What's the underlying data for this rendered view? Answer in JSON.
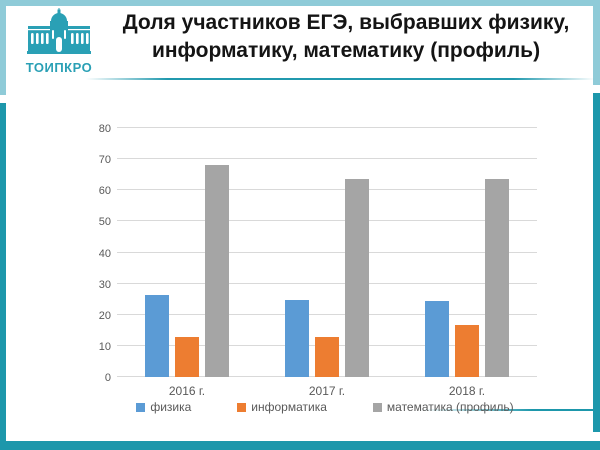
{
  "header": {
    "logo_text": "ТОИПКРО",
    "title_lines": [
      "Доля участников ЕГЭ, выбравших физику,",
      "информатику, математику (профиль)"
    ]
  },
  "chart_data": {
    "type": "bar",
    "title": "",
    "xlabel": "",
    "ylabel": "",
    "categories": [
      "2016 г.",
      "2017 г.",
      "2018 г."
    ],
    "series": [
      {
        "name": "физика",
        "color": "#5b9bd5",
        "values": [
          26.5,
          24.8,
          24.4
        ]
      },
      {
        "name": "информатика",
        "color": "#ed7d31",
        "values": [
          12.8,
          12.7,
          16.8
        ]
      },
      {
        "name": "математика (профиль)",
        "color": "#a5a5a5",
        "values": [
          68,
          63.5,
          63.5
        ]
      }
    ],
    "ylim": [
      0,
      80
    ],
    "ytick_step": 10,
    "yticks": [
      0,
      10,
      20,
      30,
      40,
      50,
      60,
      70,
      80
    ],
    "grid": true,
    "legend_position": "bottom"
  },
  "colors": {
    "frame_teal_dark": "#1d97ab",
    "frame_teal_light": "#8fcbd8",
    "logo_teal": "#2aa0b5",
    "gridline": "#d9d9d9",
    "axis_text": "#595959",
    "title_text": "#141414"
  }
}
